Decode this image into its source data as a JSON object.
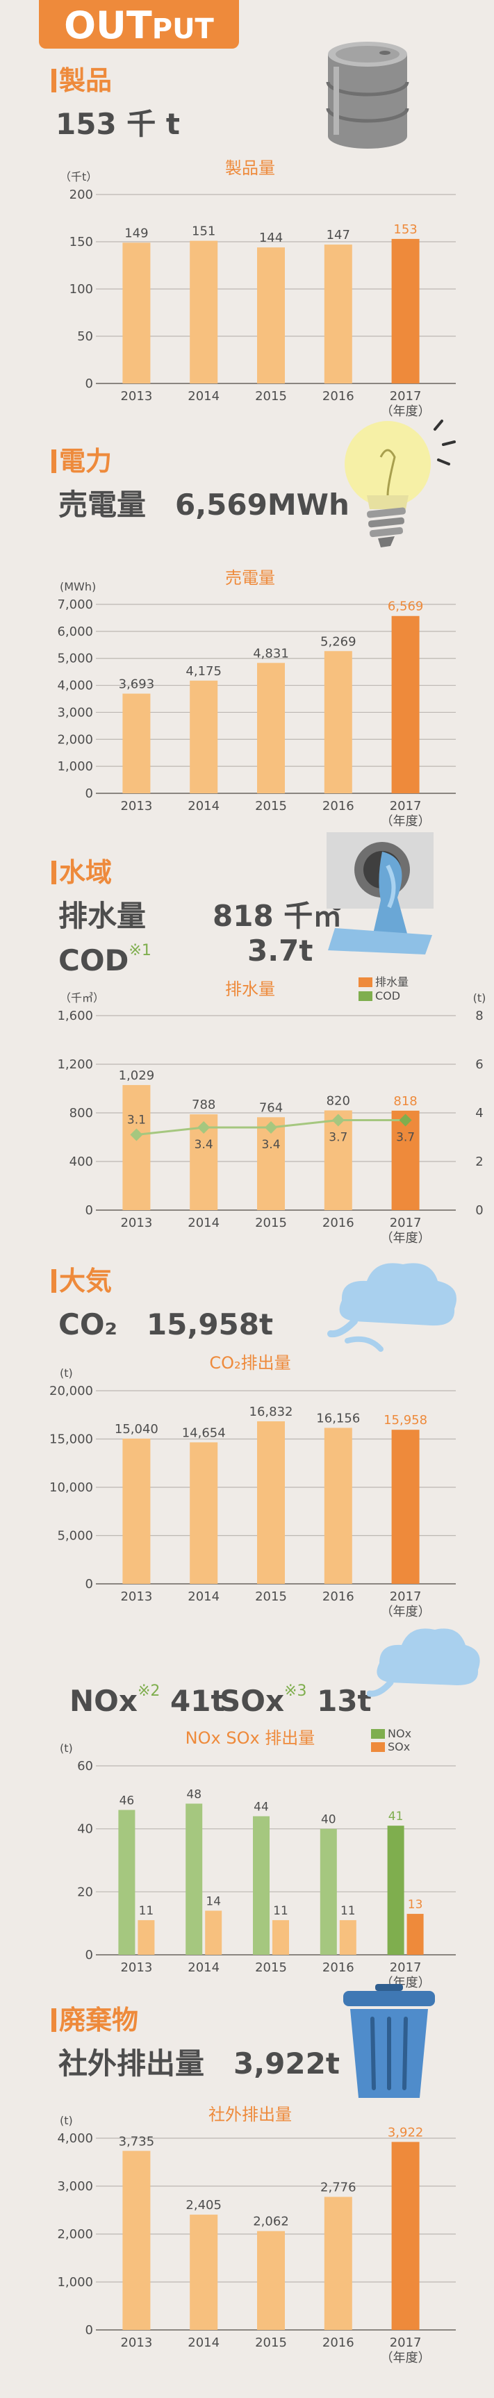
{
  "header": {
    "badge_main": "OUT",
    "badge_small": "PUT"
  },
  "colors": {
    "accent": "#ee8a3b",
    "bar_light": "#f7c07e",
    "bar_highlight": "#ee8a3b",
    "green": "#7fae4e",
    "green_light": "#a5c77f",
    "grid": "#bcb7b2",
    "text": "#4d4d4d"
  },
  "products": {
    "title": "製品",
    "value": "153 千 t",
    "icon": "oil-drum-icon"
  },
  "power": {
    "title": "電力",
    "value": "売電量　6,569MWh",
    "icon": "light-bulb-icon"
  },
  "water": {
    "title": "水域",
    "drain_label": "排水量",
    "drain_value": "818 千㎥",
    "cod_label": "COD",
    "cod_note": "※1",
    "cod_value": "3.7t",
    "icon": "drain-pipe-icon"
  },
  "air": {
    "title": "大気",
    "co2_value": "CO₂　15,958t",
    "nox_label": "NOx",
    "nox_note": "※2",
    "nox_value": "41t",
    "sox_label": "SOx",
    "sox_note": "※3",
    "sox_value": "13t",
    "icon": "cloud-icon"
  },
  "waste": {
    "title": "廃棄物",
    "value": "社外排出量　3,922t",
    "icon": "trash-can-icon"
  },
  "chart_data": [
    {
      "type": "bar",
      "title": "製品量",
      "unit": "（千t）",
      "categories": [
        "2013",
        "2014",
        "2015",
        "2016",
        "2017"
      ],
      "last_category_note": "（年度）",
      "values": [
        149,
        151,
        144,
        147,
        153
      ],
      "labels": [
        "149",
        "151",
        "144",
        "147",
        "153"
      ],
      "ylim": [
        0,
        200
      ],
      "yticks": [
        0,
        50,
        100,
        150,
        200
      ],
      "ytick_labels": [
        "0",
        "50",
        "100",
        "150",
        "200"
      ],
      "highlight_last": true,
      "grid": true
    },
    {
      "type": "bar",
      "title": "売電量",
      "unit": "(MWh)",
      "categories": [
        "2013",
        "2014",
        "2015",
        "2016",
        "2017"
      ],
      "last_category_note": "（年度）",
      "values": [
        3693,
        4175,
        4831,
        5269,
        6569
      ],
      "labels": [
        "3,693",
        "4,175",
        "4,831",
        "5,269",
        "6,569"
      ],
      "ylim": [
        0,
        7000
      ],
      "yticks": [
        0,
        1000,
        2000,
        3000,
        4000,
        5000,
        6000,
        7000
      ],
      "ytick_labels": [
        "0",
        "1,000",
        "2,000",
        "3,000",
        "4,000",
        "5,000",
        "6,000",
        "7,000"
      ],
      "highlight_last": true,
      "grid": true
    },
    {
      "type": "bar",
      "title": "排水量",
      "unit": "（千㎥）",
      "unit_right": "(t)",
      "categories": [
        "2013",
        "2014",
        "2015",
        "2016",
        "2017"
      ],
      "last_category_note": "（年度）",
      "series": [
        {
          "name": "排水量",
          "values": [
            1029,
            788,
            764,
            820,
            818
          ],
          "labels": [
            "1,029",
            "788",
            "764",
            "820",
            "818"
          ]
        },
        {
          "name": "COD",
          "values": [
            3.1,
            3.4,
            3.4,
            3.7,
            3.7
          ],
          "labels": [
            "3.1",
            "3.4",
            "3.4",
            "3.7",
            "3.7"
          ],
          "axis": "right",
          "type": "line"
        }
      ],
      "ylim": [
        0,
        1600
      ],
      "yticks": [
        0,
        400,
        800,
        1200,
        1600
      ],
      "ytick_labels": [
        "0",
        "400",
        "800",
        "1,200",
        "1,600"
      ],
      "y2lim": [
        0,
        8
      ],
      "y2ticks": [
        0,
        2,
        4,
        6,
        8
      ],
      "y2tick_labels": [
        "0",
        "2",
        "4",
        "6",
        "8"
      ],
      "legend": "top-right",
      "highlight_last": true,
      "grid": true
    },
    {
      "type": "bar",
      "title": "CO₂排出量",
      "unit": "(t)",
      "categories": [
        "2013",
        "2014",
        "2015",
        "2016",
        "2017"
      ],
      "last_category_note": "（年度）",
      "values": [
        15040,
        14654,
        16832,
        16156,
        15958
      ],
      "labels": [
        "15,040",
        "14,654",
        "16,832",
        "16,156",
        "15,958"
      ],
      "ylim": [
        0,
        20000
      ],
      "yticks": [
        0,
        5000,
        10000,
        15000,
        20000
      ],
      "ytick_labels": [
        "0",
        "5,000",
        "10,000",
        "15,000",
        "20,000"
      ],
      "highlight_last": true,
      "grid": true
    },
    {
      "type": "bar",
      "title": "NOx SOx 排出量",
      "unit": "(t)",
      "categories": [
        "2013",
        "2014",
        "2015",
        "2016",
        "2017"
      ],
      "last_category_note": "（年度）",
      "series": [
        {
          "name": "NOx",
          "values": [
            46,
            48,
            44,
            40,
            41
          ],
          "labels": [
            "46",
            "48",
            "44",
            "40",
            "41"
          ]
        },
        {
          "name": "SOx",
          "values": [
            11,
            14,
            11,
            11,
            13
          ],
          "labels": [
            "11",
            "14",
            "11",
            "11",
            "13"
          ]
        }
      ],
      "ylim": [
        0,
        60
      ],
      "yticks": [
        0,
        20,
        40,
        60
      ],
      "ytick_labels": [
        "0",
        "20",
        "40",
        "60"
      ],
      "legend": "top-right",
      "highlight_last": true,
      "grid": true
    },
    {
      "type": "bar",
      "title": "社外排出量",
      "unit": "(t)",
      "categories": [
        "2013",
        "2014",
        "2015",
        "2016",
        "2017"
      ],
      "last_category_note": "（年度）",
      "values": [
        3735,
        2405,
        2062,
        2776,
        3922
      ],
      "labels": [
        "3,735",
        "2,405",
        "2,062",
        "2,776",
        "3,922"
      ],
      "ylim": [
        0,
        4000
      ],
      "yticks": [
        0,
        1000,
        2000,
        3000,
        4000
      ],
      "ytick_labels": [
        "0",
        "1,000",
        "2,000",
        "3,000",
        "4,000"
      ],
      "highlight_last": true,
      "grid": true
    }
  ]
}
